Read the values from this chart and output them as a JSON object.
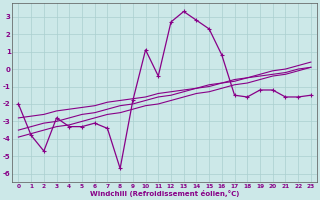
{
  "xlabel": "Windchill (Refroidissement éolien,°C)",
  "x_data": [
    0,
    1,
    2,
    3,
    4,
    5,
    6,
    7,
    8,
    9,
    10,
    11,
    12,
    13,
    14,
    15,
    16,
    17,
    18,
    19,
    20,
    21,
    22,
    23
  ],
  "y_main": [
    -2.0,
    -3.8,
    -4.7,
    -2.8,
    -3.3,
    -3.3,
    -3.1,
    -3.4,
    -5.7,
    -1.8,
    1.1,
    -0.4,
    2.7,
    3.3,
    2.8,
    2.3,
    0.8,
    -1.5,
    -1.6,
    -1.2,
    -1.2,
    -1.6,
    -1.6,
    -1.5
  ],
  "y_reg1": [
    -3.5,
    -3.3,
    -3.1,
    -3.0,
    -2.8,
    -2.6,
    -2.5,
    -2.3,
    -2.1,
    -2.0,
    -1.8,
    -1.6,
    -1.5,
    -1.3,
    -1.1,
    -1.0,
    -0.8,
    -0.6,
    -0.5,
    -0.3,
    -0.1,
    0.0,
    0.2,
    0.4
  ],
  "y_reg2": [
    -3.9,
    -3.7,
    -3.5,
    -3.3,
    -3.2,
    -3.0,
    -2.8,
    -2.6,
    -2.5,
    -2.3,
    -2.1,
    -2.0,
    -1.8,
    -1.6,
    -1.4,
    -1.3,
    -1.1,
    -0.9,
    -0.8,
    -0.6,
    -0.4,
    -0.3,
    -0.1,
    0.1
  ],
  "y_reg3": [
    -2.8,
    -2.7,
    -2.6,
    -2.4,
    -2.3,
    -2.2,
    -2.1,
    -1.9,
    -1.8,
    -1.7,
    -1.6,
    -1.4,
    -1.3,
    -1.2,
    -1.1,
    -0.9,
    -0.8,
    -0.7,
    -0.5,
    -0.4,
    -0.3,
    -0.2,
    0.0,
    0.1
  ],
  "line_color": "#880088",
  "bg_color": "#cce8e8",
  "grid_color": "#aacfcf",
  "ylim": [
    -6.5,
    3.8
  ],
  "xlim": [
    -0.5,
    23.5
  ]
}
